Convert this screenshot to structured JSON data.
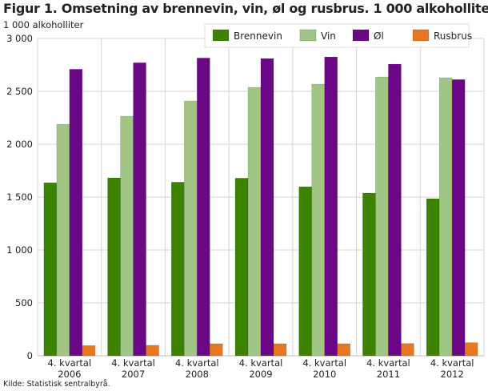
{
  "chart_data": {
    "type": "bar",
    "title": "Figur 1. Omsetning av brennevin, vin, øl og rusbrus. 1 000 alkoholliter",
    "ylabel": "1 000 alkoholliter",
    "xlabel": "",
    "ylim": [
      0,
      3000
    ],
    "yticks": [
      0,
      500,
      1000,
      1500,
      2000,
      2500,
      3000
    ],
    "ytick_labels": [
      "0",
      "500",
      "1 000",
      "1 500",
      "2 000",
      "2 500",
      "3 000"
    ],
    "grid": true,
    "legend_position": "top-right",
    "categories": [
      [
        "4. kvartal",
        "2006"
      ],
      [
        "4. kvartal",
        "2007"
      ],
      [
        "4. kvartal",
        "2008"
      ],
      [
        "4. kvartal",
        "2009"
      ],
      [
        "4. kvartal",
        "2010"
      ],
      [
        "4. kvartal",
        "2011"
      ],
      [
        "4. kvartal",
        "2012"
      ]
    ],
    "series": [
      {
        "name": "Brennevin",
        "color": "#3d8200",
        "values": [
          1636,
          1682,
          1641,
          1679,
          1598,
          1538,
          1485
        ]
      },
      {
        "name": "Vin",
        "color": "#a0c585",
        "values": [
          2189,
          2265,
          2409,
          2538,
          2568,
          2636,
          2629
        ]
      },
      {
        "name": "Øl",
        "color": "#6a0785",
        "values": [
          2709,
          2770,
          2815,
          2810,
          2825,
          2757,
          2611
        ]
      },
      {
        "name": "Rusbrus",
        "color": "#e87722",
        "values": [
          96,
          99,
          114,
          114,
          114,
          116,
          124
        ]
      }
    ]
  },
  "source": "Kilde: Statistisk sentralbyrå."
}
